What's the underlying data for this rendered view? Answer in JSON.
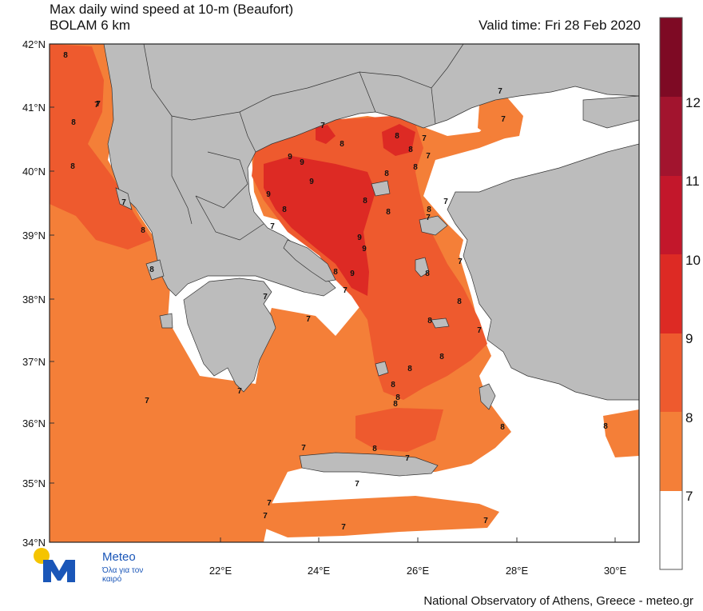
{
  "title_line1": "Max daily wind speed at 10-m (Beaufort)",
  "title_line2": "BOLAM 6 km",
  "valid_time": "Valid time: Fri 28 Feb 2020",
  "lat_ticks": [
    "42°N",
    "41°N",
    "40°N",
    "39°N",
    "38°N",
    "37°N",
    "36°N",
    "35°N",
    "34°N"
  ],
  "lon_ticks": [
    "22°E",
    "24°E",
    "26°E",
    "28°E",
    "30°E"
  ],
  "colorbar": {
    "levels": [
      "7",
      "8",
      "9",
      "10",
      "11",
      "12"
    ],
    "colors": [
      "#ffffff",
      "#f47f38",
      "#ee5a2e",
      "#dd2a24",
      "#c3172b",
      "#a2142e",
      "#7e0a24"
    ]
  },
  "land_color": "#bcbcbc",
  "contour_labels": [
    "8",
    "7",
    "8",
    "7",
    "8",
    "8",
    "9",
    "9",
    "8",
    "8",
    "9",
    "9",
    "8",
    "8",
    "8",
    "9",
    "9",
    "8",
    "7",
    "8",
    "7",
    "8",
    "7",
    "7",
    "7",
    "8",
    "8",
    "8",
    "8",
    "7",
    "8",
    "8",
    "7",
    "8",
    "8",
    "8",
    "8",
    "7",
    "7",
    "7",
    "7",
    "7",
    "7",
    "7",
    "7",
    "7",
    "7",
    "7",
    "7",
    "8",
    "8",
    "7",
    "7",
    "7",
    "9",
    "7",
    "8",
    "8"
  ],
  "logo": {
    "name": "Meteo",
    "tagline": "Όλα για τον καιρό"
  },
  "footer": "National Observatory of Athens, Greece - meteo.gr"
}
